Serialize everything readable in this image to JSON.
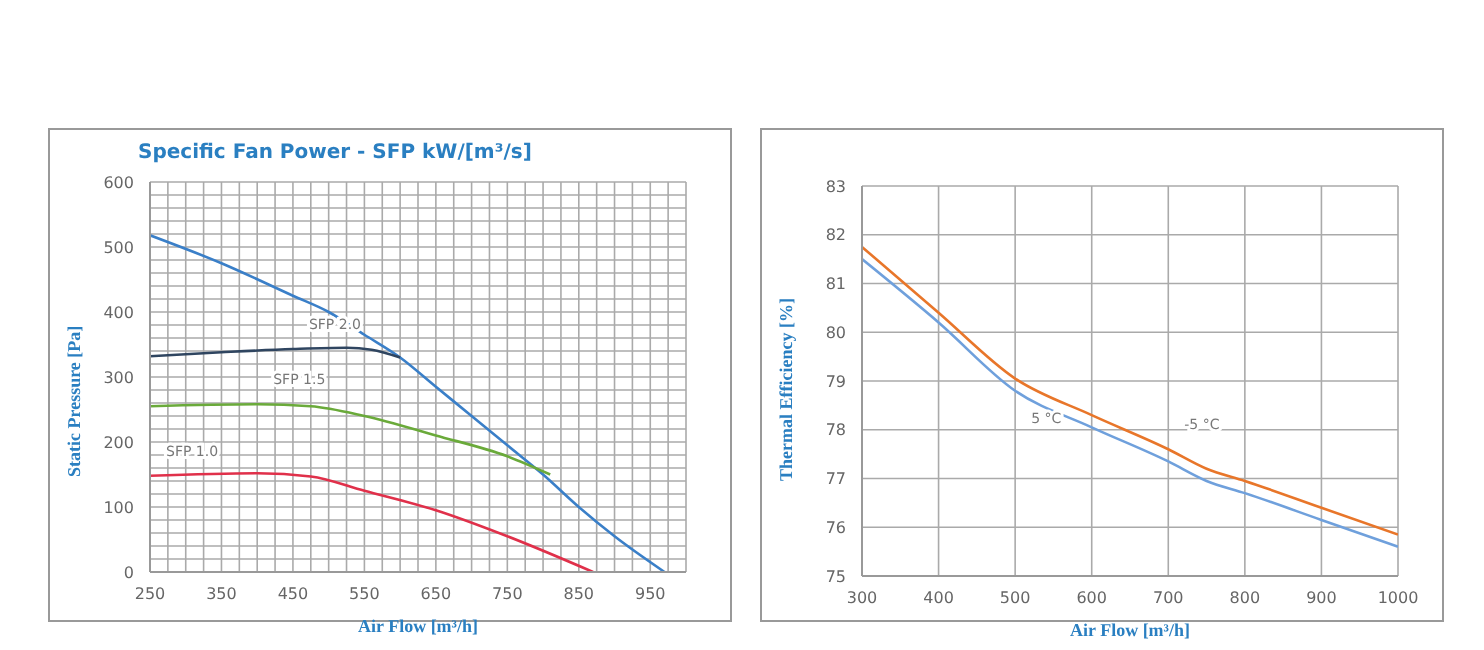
{
  "chart_data": [
    {
      "type": "line",
      "title": "Specific Fan Power - SFP kW/[m³/s]",
      "xlabel": "Air Flow [m³/h]",
      "ylabel": "Static Pressure [Pa]",
      "xlim": [
        250,
        1000
      ],
      "ylim": [
        0,
        600
      ],
      "xticks": [
        250,
        {
          "value": 275,
          "label": null
        },
        {
          "value": 300,
          "label": null
        },
        {
          "value": 325,
          "label": null
        },
        350,
        {
          "value": 375,
          "label": null
        },
        {
          "value": 400,
          "label": null
        },
        {
          "value": 425,
          "label": null
        },
        450,
        {
          "value": 475,
          "label": null
        },
        {
          "value": 500,
          "label": null
        },
        {
          "value": 525,
          "label": null
        },
        550,
        {
          "value": 575,
          "label": null
        },
        {
          "value": 600,
          "label": null
        },
        {
          "value": 625,
          "label": null
        },
        650,
        {
          "value": 675,
          "label": null
        },
        {
          "value": 700,
          "label": null
        },
        {
          "value": 725,
          "label": null
        },
        750,
        {
          "value": 775,
          "label": null
        },
        {
          "value": 800,
          "label": null
        },
        {
          "value": 825,
          "label": null
        },
        850,
        {
          "value": 875,
          "label": null
        },
        {
          "value": 900,
          "label": null
        },
        {
          "value": 925,
          "label": null
        },
        950,
        {
          "value": 975,
          "label": null
        },
        {
          "value": 1000,
          "label": null
        }
      ],
      "yticks": [
        0,
        {
          "value": 20,
          "label": null
        },
        {
          "value": 40,
          "label": null
        },
        {
          "value": 60,
          "label": null
        },
        {
          "value": 80,
          "label": null
        },
        100,
        {
          "value": 120,
          "label": null
        },
        {
          "value": 140,
          "label": null
        },
        {
          "value": 160,
          "label": null
        },
        {
          "value": 180,
          "label": null
        },
        200,
        {
          "value": 220,
          "label": null
        },
        {
          "value": 240,
          "label": null
        },
        {
          "value": 260,
          "label": null
        },
        {
          "value": 280,
          "label": null
        },
        300,
        {
          "value": 320,
          "label": null
        },
        {
          "value": 340,
          "label": null
        },
        {
          "value": 360,
          "label": null
        },
        {
          "value": 380,
          "label": null
        },
        400,
        {
          "value": 420,
          "label": null
        },
        {
          "value": 440,
          "label": null
        },
        {
          "value": 460,
          "label": null
        },
        {
          "value": 480,
          "label": null
        },
        500,
        {
          "value": 520,
          "label": null
        },
        {
          "value": 540,
          "label": null
        },
        {
          "value": 560,
          "label": null
        },
        {
          "value": 580,
          "label": null
        },
        600
      ],
      "grid": true,
      "legend": false,
      "marker": "none",
      "line_style": "solid",
      "series": [
        {
          "color": "#3a7fc8",
          "x": [
            250,
            350,
            450,
            500,
            550,
            600,
            650,
            700,
            750,
            800,
            850,
            900,
            970
          ],
          "values": [
            518,
            475,
            425,
            400,
            365,
            330,
            285,
            240,
            195,
            150,
            100,
            55,
            0
          ]
        },
        {
          "name": "SFP 2.0",
          "color": "#2f4560",
          "x": [
            250,
            350,
            450,
            525,
            560,
            600
          ],
          "values": [
            332,
            338,
            343,
            345,
            342,
            330
          ]
        },
        {
          "name": "SFP 1.5",
          "color": "#6aaa3a",
          "x": [
            250,
            400,
            475,
            550,
            650,
            750,
            810
          ],
          "values": [
            255,
            258,
            255,
            240,
            210,
            178,
            150
          ]
        },
        {
          "name": "SFP 1.0",
          "color": "#e0304a",
          "x": [
            250,
            400,
            475,
            550,
            650,
            750,
            870
          ],
          "values": [
            148,
            152,
            147,
            125,
            95,
            55,
            0
          ]
        }
      ]
    },
    {
      "type": "line",
      "xlabel": "Air Flow [m³/h]",
      "ylabel": "Thermal Efficiency [%]",
      "xlim": [
        300,
        1000
      ],
      "ylim": [
        75,
        83
      ],
      "xticks": [
        300,
        400,
        500,
        600,
        700,
        800,
        900,
        1000
      ],
      "yticks": [
        75,
        76,
        77,
        78,
        79,
        80,
        81,
        82,
        83
      ],
      "grid": true,
      "legend": false,
      "marker": "none",
      "line_style": "solid",
      "series": [
        {
          "name": "-5 °C",
          "color": "#e8762a",
          "x": [
            300,
            400,
            500,
            600,
            700,
            750,
            800,
            900,
            1000
          ],
          "values": [
            81.75,
            80.4,
            79.05,
            78.3,
            77.6,
            77.2,
            76.95,
            76.4,
            75.85
          ]
        },
        {
          "name": "5 °C",
          "color": "#6fa0dc",
          "x": [
            300,
            400,
            500,
            600,
            700,
            750,
            800,
            900,
            1000
          ],
          "values": [
            81.5,
            80.2,
            78.8,
            78.05,
            77.35,
            76.95,
            76.7,
            76.15,
            75.6
          ]
        }
      ]
    }
  ]
}
